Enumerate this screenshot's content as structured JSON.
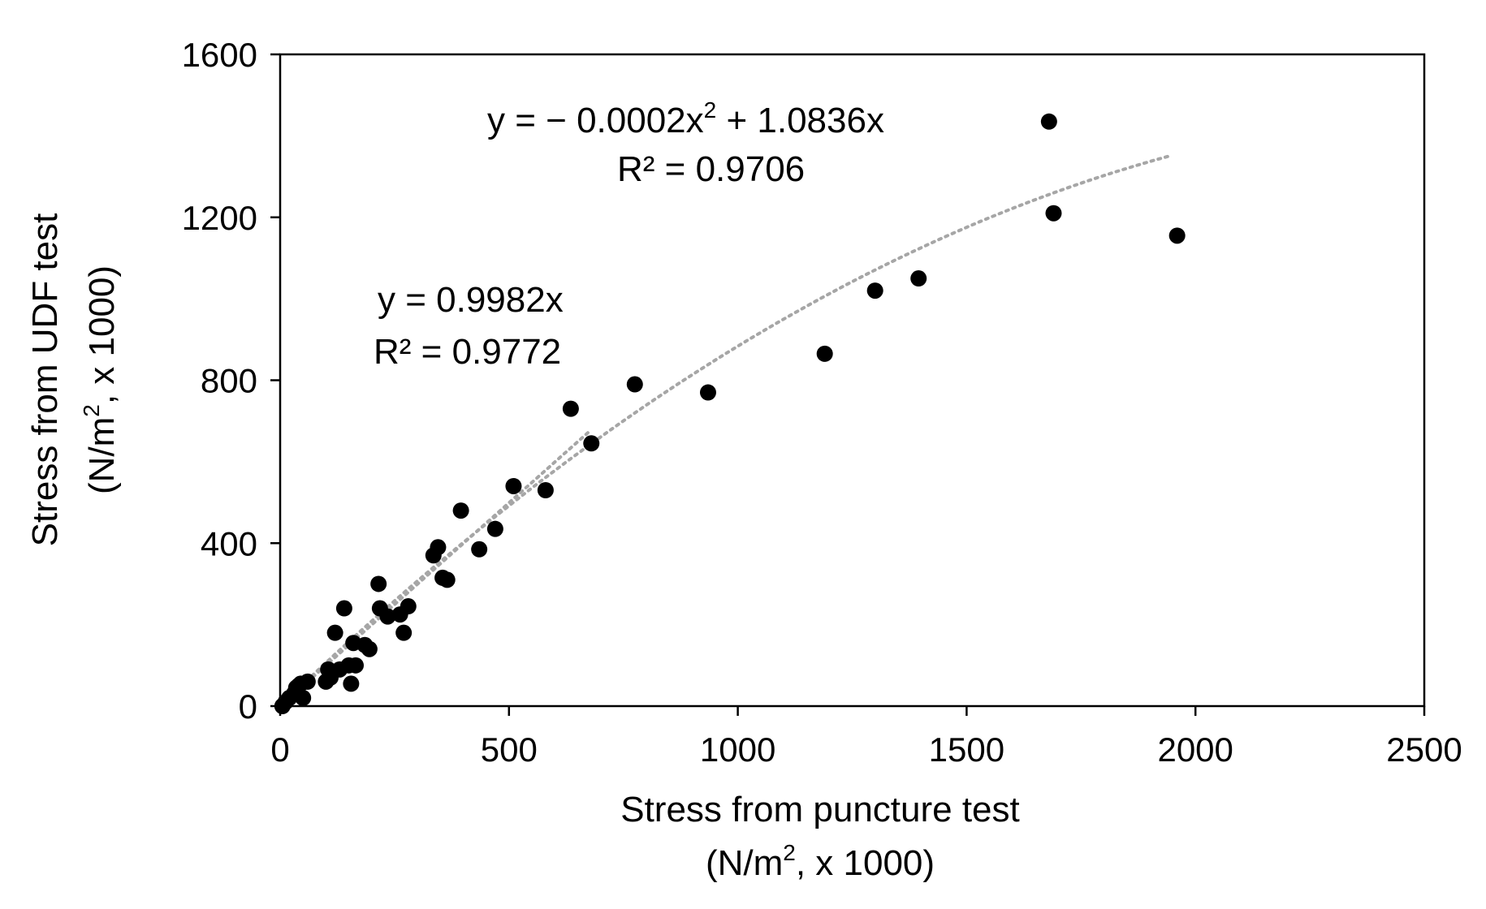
{
  "chart_data": {
    "type": "scatter",
    "title": "",
    "xlabel": "Stress from puncture test",
    "xlabel_line2_pre": "(N/m",
    "xlabel_line2_sup": "2",
    "xlabel_line2_post": ", x 1000)",
    "ylabel": "Stress from UDF test",
    "ylabel_line2_pre": "(N/m",
    "ylabel_line2_sup": "2",
    "ylabel_line2_post": ", x 1000)",
    "xlim": [
      0,
      2500
    ],
    "ylim": [
      0,
      1600
    ],
    "xticks": [
      0,
      500,
      1000,
      1500,
      2000,
      2500
    ],
    "yticks": [
      0,
      400,
      800,
      1200,
      1600
    ],
    "grid": false,
    "colors": {
      "points": "#000000",
      "trendline": "#a6a6a6",
      "axis": "#000000"
    },
    "series": [
      {
        "name": "data",
        "x": [
          5,
          12,
          20,
          30,
          35,
          40,
          45,
          50,
          60,
          100,
          105,
          110,
          120,
          130,
          140,
          150,
          155,
          160,
          165,
          185,
          195,
          215,
          218,
          235,
          262,
          270,
          280,
          335,
          345,
          355,
          365,
          395,
          435,
          470,
          510,
          580,
          635,
          680,
          775,
          935,
          1190,
          1300,
          1395,
          1680,
          1690,
          1960
        ],
        "y": [
          0,
          10,
          20,
          30,
          45,
          50,
          55,
          20,
          60,
          60,
          90,
          70,
          180,
          90,
          240,
          100,
          55,
          155,
          100,
          150,
          140,
          300,
          240,
          220,
          225,
          180,
          245,
          370,
          390,
          315,
          310,
          480,
          385,
          435,
          540,
          530,
          730,
          645,
          790,
          770,
          865,
          1020,
          1050,
          1435,
          1210,
          1155
        ]
      }
    ],
    "trendlines": [
      {
        "name": "linear",
        "equation": "y = 0.9982x",
        "r2": "R² = 0.9772",
        "a2": 0,
        "a1": 0.9982,
        "x_range": [
          0,
          680
        ]
      },
      {
        "name": "polynomial",
        "equation_pre": "y = − 0.0002x",
        "equation_sup": "2",
        "equation_post": " + 1.0836x",
        "r2": "R² = 0.9706",
        "a2": -0.0002,
        "a1": 1.0836,
        "x_range": [
          0,
          1940
        ]
      }
    ]
  }
}
